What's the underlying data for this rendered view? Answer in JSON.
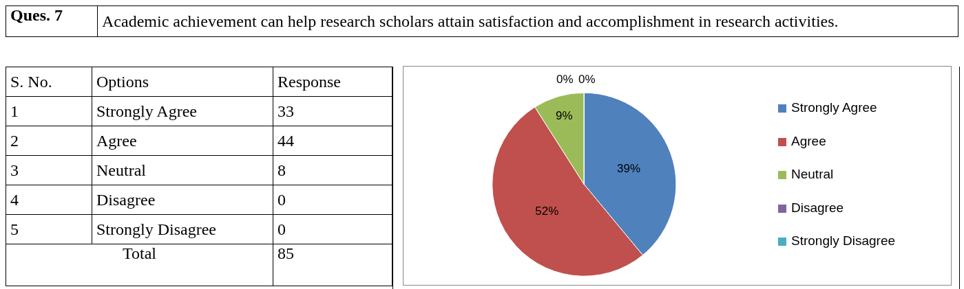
{
  "chart_data": {
    "type": "pie",
    "title": "Ques. 7",
    "subtitle": "Academic achievement can help research scholars attain satisfaction and accomplishment in research activities.",
    "categories": [
      "Strongly Agree",
      "Agree",
      "Neutral",
      "Disagree",
      "Strongly Disagree"
    ],
    "values": [
      39,
      52,
      9,
      0,
      0
    ],
    "value_labels": [
      "39%",
      "52%",
      "9%",
      "0%",
      "0%"
    ],
    "colors": [
      "#4f81bd",
      "#c0504d",
      "#9bbb59",
      "#8064a2",
      "#4bacc6"
    ],
    "legend": "right",
    "annotations": [
      "S. No.",
      "Options",
      "Response",
      "1",
      "33",
      "2",
      "44",
      "3",
      "8",
      "4",
      "0",
      "5",
      "0",
      "Total",
      "85"
    ]
  }
}
